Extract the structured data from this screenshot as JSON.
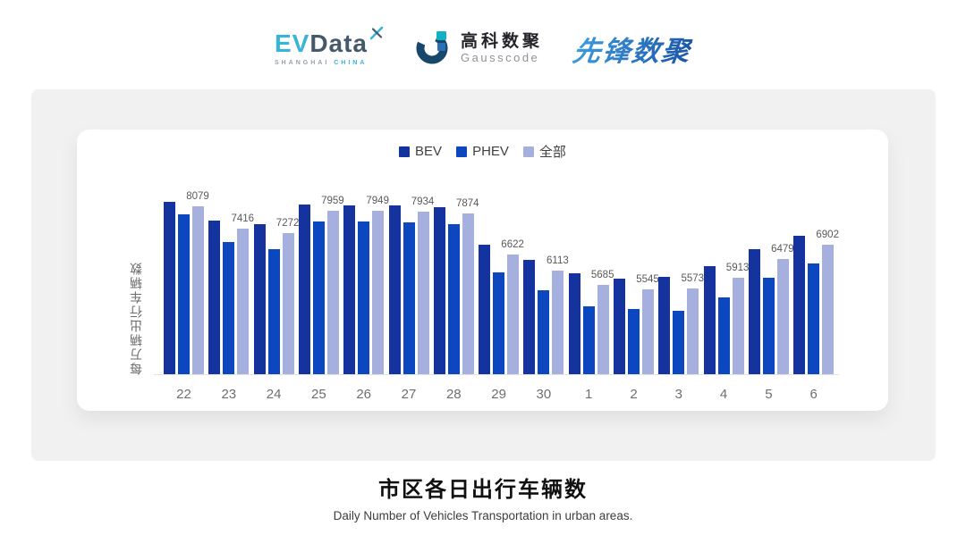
{
  "header": {
    "evdata": {
      "part1": "EV",
      "part2": "Data",
      "sub1": "SHANGHAI",
      "sub2": "CHINA"
    },
    "gausscode": {
      "cn": "高科数聚",
      "en": "Gausscode"
    },
    "pioneer": {
      "text": "先锋数聚"
    }
  },
  "brand_colors": {
    "evdata_cyan": "#36b4dc",
    "evdata_slate": "#46596a",
    "evdata_sub_gray": "#95a3ad",
    "gauss_navy": "#17486b",
    "gauss_teal": "#12b0c4",
    "gauss_blue": "#2a70b8",
    "pioneer_light": "#3f9ede",
    "pioneer_dark": "#1b55a8"
  },
  "chart_data": {
    "type": "bar",
    "categories": [
      "22",
      "23",
      "24",
      "25",
      "26",
      "27",
      "28",
      "29",
      "30",
      "1",
      "2",
      "3",
      "4",
      "5",
      "6"
    ],
    "series": [
      {
        "name": "BEV",
        "color": "#15339e",
        "values": [
          8240,
          7650,
          7545,
          8150,
          8125,
          8125,
          8060,
          6910,
          6455,
          6040,
          5885,
          5930,
          6250,
          6775,
          7200
        ]
      },
      {
        "name": "PHEV",
        "color": "#0d47c0",
        "values": [
          7855,
          6990,
          6775,
          7625,
          7615,
          7590,
          7545,
          6065,
          5515,
          5025,
          4935,
          4905,
          5315,
          5905,
          6340
        ]
      },
      {
        "name": "全部",
        "color": "#a6b0de",
        "values": [
          8079,
          7416,
          7272,
          7959,
          7949,
          7934,
          7874,
          6622,
          6113,
          5685,
          5545,
          5573,
          5913,
          6479,
          6902
        ]
      }
    ],
    "data_labels": [
      8079,
      7416,
      7272,
      7959,
      7949,
      7934,
      7874,
      6622,
      6113,
      5685,
      5545,
      5573,
      5913,
      6479,
      6902
    ],
    "data_label_series": "全部",
    "ylabel": "每万辆出行车辆数",
    "xlabel": "",
    "ylim": [
      2950,
      8500
    ],
    "grid": false,
    "legend_position": "top",
    "note": "BEV and PHEV values estimated from bar heights; 全部 values are the printed data labels"
  },
  "footer": {
    "title": "市区各日出行车辆数",
    "subtitle": "Daily Number of Vehicles Transportation in urban areas."
  }
}
